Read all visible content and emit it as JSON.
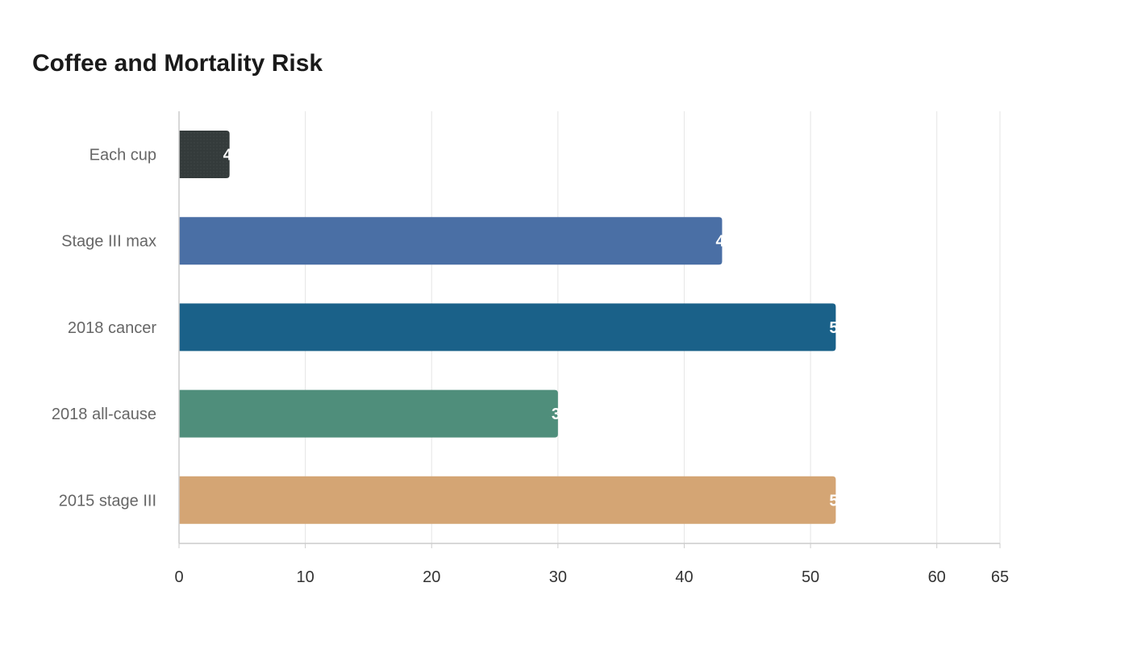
{
  "chart_data": {
    "type": "bar",
    "orientation": "horizontal",
    "title": "Coffee and Mortality Risk",
    "xlabel": "",
    "ylabel": "",
    "categories": [
      "Each cup",
      "Stage III max",
      "2018 cancer",
      "2018 all-cause",
      "2015 stage III"
    ],
    "values": [
      4,
      43,
      52,
      30,
      52
    ],
    "colors": [
      "#343b3b",
      "#4a6fa5",
      "#1a6189",
      "#4f8e7b",
      "#d4a574"
    ],
    "xlim": [
      0,
      65
    ],
    "xticks": [
      0,
      10,
      20,
      30,
      40,
      50,
      60,
      65
    ],
    "grid": true,
    "legend": "none"
  }
}
